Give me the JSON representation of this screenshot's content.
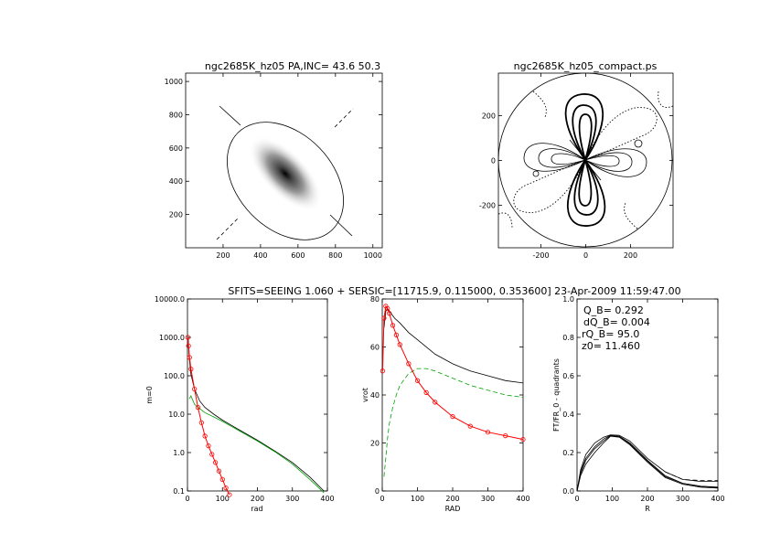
{
  "header": "SFITS=SEEING 1.060 + SERSIC=[11715.9, 0.115000, 0.353600]  23-Apr-2009 11:59:47.00",
  "colors": {
    "black": "#000000",
    "red": "#ff0000",
    "green": "#00a000"
  },
  "chart_data": [
    {
      "type": "other",
      "title": "ngc2685K_hz05 PA,INC= 43.6 50.3",
      "xlim": [
        0,
        1050
      ],
      "ylim": [
        0,
        1050
      ],
      "xticks": [
        "200",
        "400",
        "600",
        "800",
        "1000"
      ],
      "yticks": [
        "200",
        "400",
        "600",
        "800",
        "1000"
      ]
    },
    {
      "type": "other",
      "title": "ngc2685K_hz05_compact.ps",
      "xlim": [
        -390,
        390
      ],
      "ylim": [
        -390,
        390
      ],
      "xticks": [
        "-200",
        "0",
        "200"
      ],
      "yticks": [
        "-200",
        "0",
        "200"
      ]
    },
    {
      "type": "line",
      "xlabel": "rad",
      "ylabel": "m=0",
      "xlim": [
        0,
        400
      ],
      "ylim": [
        0.1,
        10000
      ],
      "yscale": "log",
      "xticks": [
        "0",
        "100",
        "200",
        "300",
        "400"
      ],
      "yticks": [
        "0.1",
        "1.0",
        "10.0",
        "100.0",
        "1000.0",
        "10000.0"
      ],
      "series": [
        {
          "color": "black",
          "x": [
            2,
            5,
            10,
            20,
            35,
            50,
            75,
            100,
            150,
            200,
            250,
            300,
            350,
            390
          ],
          "y": [
            1000,
            300,
            110,
            45,
            22,
            15,
            10,
            7,
            3.8,
            2.1,
            1.1,
            0.55,
            0.23,
            0.1
          ]
        },
        {
          "color": "green",
          "x": [
            5,
            10,
            20,
            35,
            50,
            75,
            100,
            150,
            200,
            250,
            300,
            350,
            390
          ],
          "y": [
            25,
            30,
            18,
            14,
            11,
            8.5,
            6.5,
            3.6,
            2.0,
            1.05,
            0.5,
            0.2,
            0.09
          ]
        },
        {
          "color": "red",
          "x": [
            1,
            3,
            6,
            10,
            20,
            30,
            40,
            50,
            60,
            70,
            80,
            90,
            100,
            110,
            120
          ],
          "y": [
            1000,
            600,
            300,
            150,
            45,
            15,
            6,
            2.7,
            1.5,
            0.9,
            0.55,
            0.33,
            0.2,
            0.12,
            0.08
          ]
        }
      ]
    },
    {
      "type": "line",
      "xlabel": "RAD",
      "ylabel": "vrot",
      "xlim": [
        0,
        400
      ],
      "ylim": [
        0,
        80
      ],
      "xticks": [
        "0",
        "100",
        "200",
        "300",
        "400"
      ],
      "yticks": [
        "0",
        "20",
        "40",
        "60",
        "80"
      ],
      "series": [
        {
          "color": "black",
          "x": [
            5,
            10,
            15,
            20,
            35,
            50,
            75,
            100,
            150,
            200,
            250,
            300,
            350,
            400
          ],
          "y": [
            68,
            75,
            76,
            75,
            72,
            70,
            66,
            63,
            57,
            53,
            50,
            48,
            46,
            45
          ]
        },
        {
          "color": "green",
          "x": [
            5,
            10,
            15,
            20,
            30,
            40,
            50,
            75,
            100,
            125,
            150,
            200,
            250,
            300,
            350,
            400
          ],
          "y": [
            6,
            14,
            22,
            28,
            35,
            40,
            44,
            49,
            51,
            51,
            50,
            47,
            44,
            42,
            40,
            39
          ]
        },
        {
          "color": "red",
          "x": [
            1,
            5,
            10,
            15,
            20,
            30,
            40,
            50,
            75,
            100,
            125,
            150,
            200,
            250,
            300,
            350,
            400
          ],
          "y": [
            50,
            72,
            77,
            76,
            74,
            69,
            65,
            61,
            53,
            46,
            41,
            37,
            31,
            27,
            24.5,
            23,
            21.5
          ]
        }
      ]
    },
    {
      "type": "line",
      "xlabel": "R",
      "ylabel": "FT/FR_0 - quadrants",
      "xlim": [
        0,
        400
      ],
      "ylim": [
        0,
        1
      ],
      "xticks": [
        "0",
        "100",
        "200",
        "300",
        "400"
      ],
      "yticks": [
        "0.0",
        "0.2",
        "0.4",
        "0.6",
        "0.8",
        "1.0"
      ],
      "annotations": [
        "Q_B=  0.292",
        "dQ_B=  0.004",
        "rQ_B=  95.0",
        "z0= 11.460"
      ],
      "series": [
        {
          "color": "black",
          "x": [
            0,
            10,
            25,
            50,
            75,
            95,
            120,
            150,
            200,
            250,
            300,
            350,
            400
          ],
          "y": [
            0,
            0.1,
            0.17,
            0.23,
            0.27,
            0.29,
            0.285,
            0.25,
            0.16,
            0.08,
            0.04,
            0.025,
            0.02
          ]
        },
        {
          "color": "black",
          "x": [
            0,
            10,
            25,
            50,
            75,
            95,
            120,
            150,
            200,
            250,
            300,
            350,
            400
          ],
          "y": [
            0,
            0.08,
            0.14,
            0.2,
            0.25,
            0.285,
            0.28,
            0.24,
            0.15,
            0.07,
            0.035,
            0.02,
            0.015
          ]
        },
        {
          "color": "black",
          "x": [
            0,
            10,
            25,
            50,
            75,
            95,
            120,
            150,
            200,
            250,
            300,
            350,
            400
          ],
          "y": [
            0,
            0.11,
            0.19,
            0.25,
            0.28,
            0.292,
            0.29,
            0.26,
            0.17,
            0.1,
            0.06,
            0.05,
            0.05
          ]
        },
        {
          "color": "black",
          "x": [
            0,
            10,
            25,
            50,
            75,
            95,
            120,
            150,
            200,
            250,
            300,
            350,
            400
          ],
          "y": [
            0,
            0.09,
            0.16,
            0.22,
            0.26,
            0.288,
            0.283,
            0.245,
            0.155,
            0.075,
            0.04,
            0.025,
            0.018
          ]
        },
        {
          "color": "black",
          "dashed": true,
          "x": [
            250,
            300,
            350,
            400
          ],
          "y": [
            0.1,
            0.06,
            0.055,
            0.055
          ]
        }
      ]
    }
  ]
}
